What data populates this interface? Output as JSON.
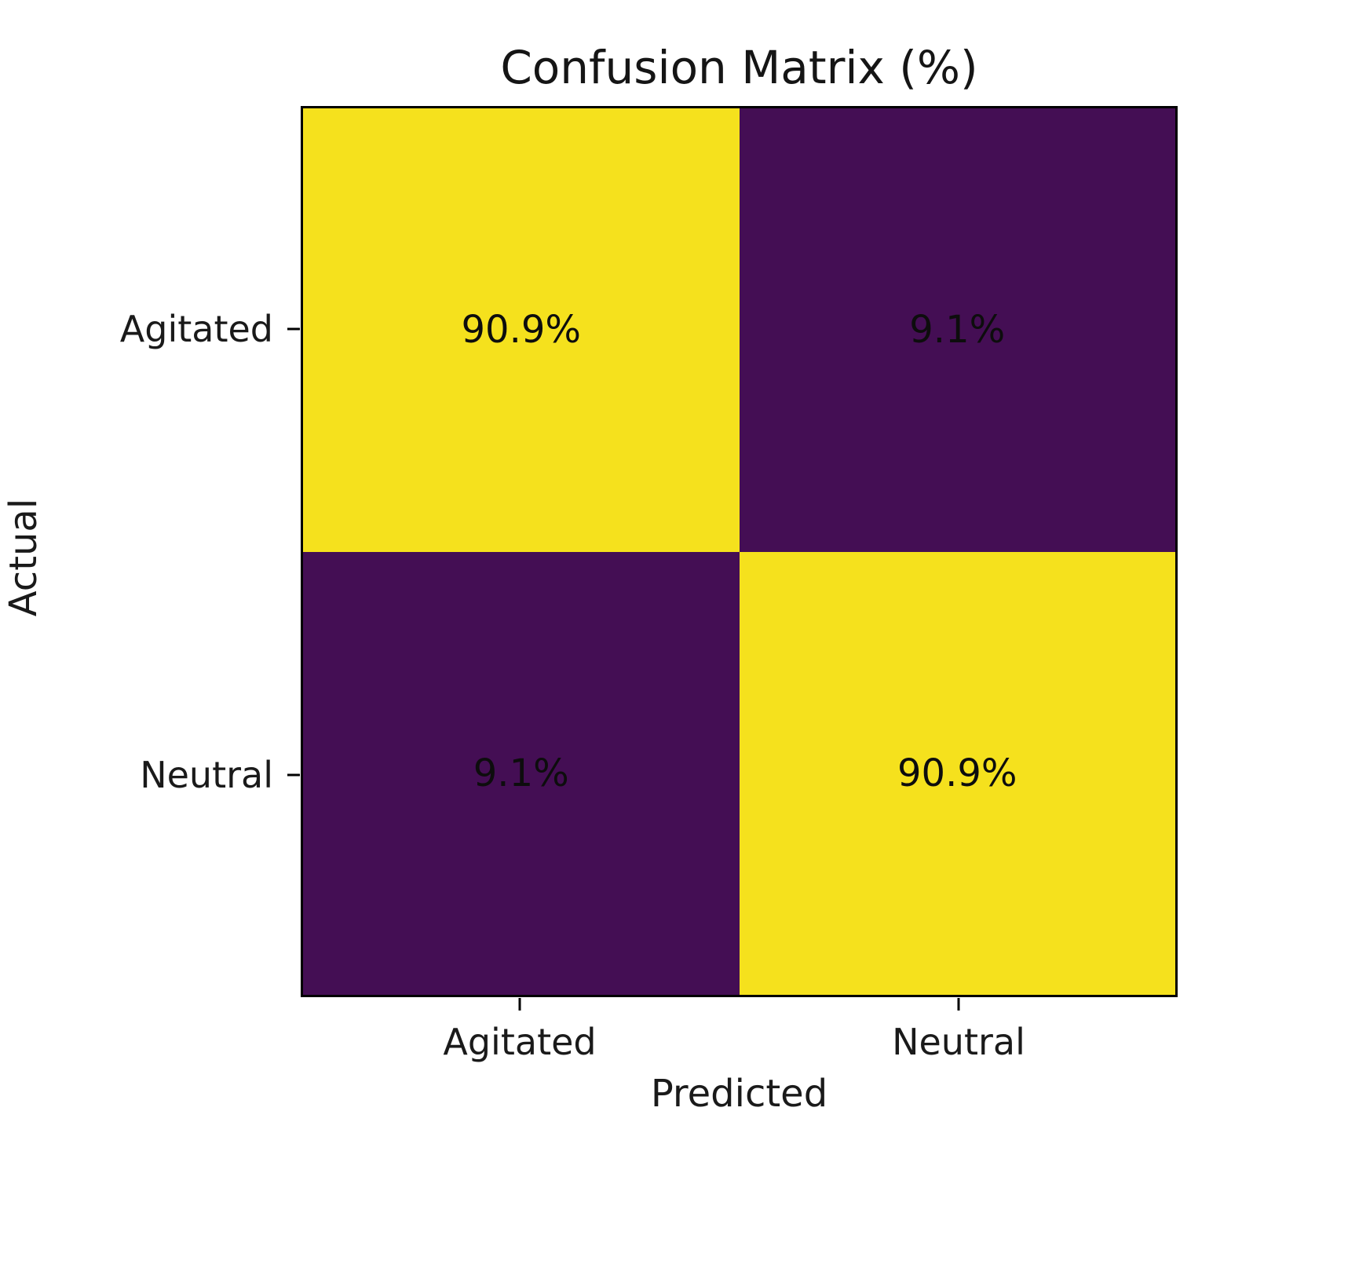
{
  "chart_data": {
    "type": "heatmap",
    "title": "Confusion Matrix (%)",
    "xlabel": "Predicted",
    "ylabel": "Actual",
    "x_tick_labels": [
      "Agitated",
      "Neutral"
    ],
    "y_tick_labels": [
      "Agitated",
      "Neutral"
    ],
    "values_percent": [
      [
        90.9,
        9.1
      ],
      [
        9.1,
        90.9
      ]
    ],
    "cell_labels": [
      [
        "90.9%",
        "9.1%"
      ],
      [
        "9.1%",
        "90.9%"
      ]
    ],
    "colormap": "viridis",
    "colors": {
      "high": "#f5e11d",
      "low": "#440e54",
      "cell_text": "#0d0d0d",
      "axis": "#000000"
    },
    "legend": "none",
    "grid": false
  }
}
